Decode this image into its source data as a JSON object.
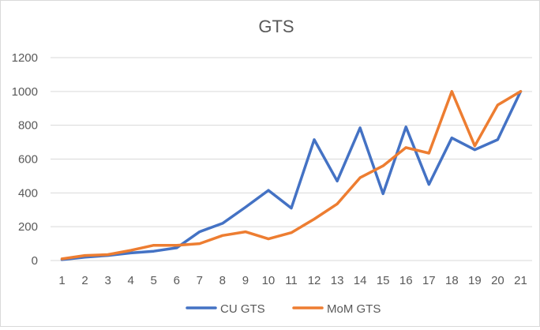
{
  "chart_data": {
    "type": "line",
    "title": "GTS",
    "xlabel": "",
    "ylabel": "",
    "categories": [
      "1",
      "2",
      "3",
      "4",
      "5",
      "6",
      "7",
      "8",
      "9",
      "10",
      "11",
      "12",
      "13",
      "14",
      "15",
      "16",
      "17",
      "18",
      "19",
      "20",
      "21"
    ],
    "ylim": [
      0,
      1200
    ],
    "yticks": [
      "0",
      "200",
      "400",
      "600",
      "800",
      "1000",
      "1200"
    ],
    "grid": true,
    "legend_position": "bottom",
    "series": [
      {
        "name": "CU GTS",
        "color": "#4472c4",
        "values": [
          5,
          20,
          30,
          45,
          55,
          75,
          170,
          220,
          315,
          415,
          310,
          715,
          470,
          785,
          395,
          790,
          450,
          725,
          655,
          715,
          1000
        ]
      },
      {
        "name": "MoM GTS",
        "color": "#ed7d31",
        "values": [
          10,
          30,
          35,
          60,
          90,
          90,
          100,
          148,
          170,
          128,
          165,
          245,
          335,
          490,
          560,
          668,
          635,
          1000,
          678,
          920,
          1000
        ]
      }
    ]
  }
}
